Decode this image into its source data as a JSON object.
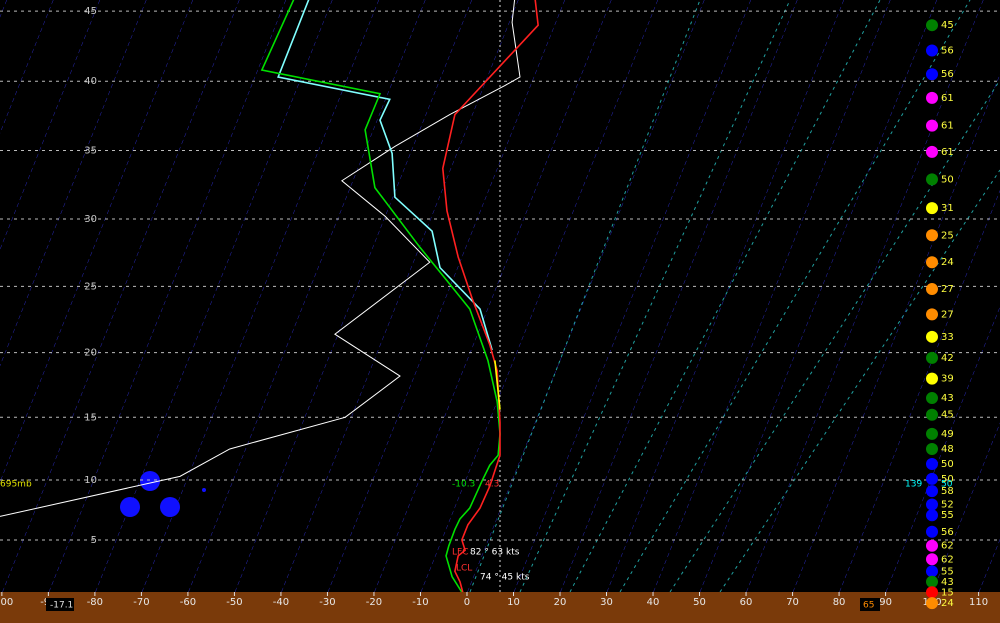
{
  "chart_data": {
    "type": "skewt",
    "xlim": [
      -100.4,
      114.6
    ],
    "ylim": [
      0,
      46
    ],
    "xticks": [
      -100,
      -90,
      -80,
      -70,
      -60,
      -50,
      -40,
      -30,
      -20,
      -10,
      0,
      10,
      20,
      30,
      40,
      50,
      60,
      70,
      80,
      90,
      100,
      110
    ],
    "yticks": [
      5,
      10,
      15,
      20,
      25,
      30,
      35,
      40,
      45
    ],
    "grid": true,
    "series": [
      {
        "color": "#ffffff",
        "x": [
          10.3,
          9.7,
          11.4,
          8.2,
          -3.7,
          -15.5,
          -26.9,
          -17.6,
          -8.0,
          -28.4,
          -14.4,
          -26.2,
          -51.0,
          -61.7,
          -100.4
        ],
        "values": [
          46,
          44.2,
          40.3,
          39.7,
          37.6,
          35.3,
          32.8,
          30.2,
          26.8,
          21.4,
          18.2,
          15,
          12.5,
          10.3,
          7.0
        ]
      },
      {
        "color": "#80ffff",
        "x": [
          -33.8,
          -40.6,
          -16.6,
          -18.7,
          -16.1,
          -15.5,
          -7.5,
          -5.8,
          2.8,
          5.4
        ],
        "values": [
          46,
          40.3,
          38.7,
          37.2,
          34.8,
          31.6,
          29.1,
          26.4,
          23.3,
          20.2
        ]
      },
      {
        "color": "#00e000",
        "x": [
          -37.0,
          -44.1,
          -18.7,
          -21.9,
          -19.8,
          -10.1,
          -4.7,
          0.6,
          4.5,
          6.5,
          7.1,
          6.7,
          4.9,
          3.2,
          0.6,
          -1.5,
          -2.6,
          -3.9,
          -4.5,
          -3.2,
          -1.1
        ],
        "values": [
          46,
          40.8,
          39.1,
          36.5,
          32.3,
          27.9,
          25.6,
          23.3,
          19.4,
          16.2,
          13.7,
          12.0,
          11.2,
          9.9,
          7.7,
          6.8,
          5.9,
          4.5,
          3.6,
          1.7,
          0.1
        ]
      },
      {
        "color": "#ff2020",
        "x": [
          14.6,
          15.3,
          -2.6,
          -5.2,
          -4.3,
          -1.9,
          1.1,
          4.9,
          6.5,
          7.1,
          7.1,
          4.9,
          2.8,
          0.2,
          -1.1,
          -0.4,
          -1.9,
          -2.6,
          -1.5,
          -0.9
        ],
        "values": [
          46,
          44.0,
          37.6,
          33.7,
          30.6,
          27.2,
          24.1,
          20.6,
          18.6,
          14.6,
          12.0,
          9.5,
          7.7,
          6.3,
          5,
          4.1,
          3.6,
          2.2,
          1.2,
          0.1
        ]
      },
      {
        "color": "#ffff00",
        "x": [
          6.0,
          7.1
        ],
        "values": [
          19.4,
          15.6
        ]
      }
    ],
    "wind": {
      "heights": [
        44.0,
        42.2,
        40.5,
        38.8,
        36.8,
        34.9,
        32.9,
        30.8,
        28.8,
        26.8,
        24.8,
        22.9,
        21.2,
        19.6,
        18.0,
        16.5,
        15.2,
        13.7,
        12.5,
        11.3,
        10.1,
        9.1,
        8.0,
        7.1,
        5.7,
        4.5,
        3.3,
        2.2,
        1.2,
        0.1,
        -1.1
      ],
      "speeds": [
        45,
        56,
        56,
        61,
        61,
        61,
        50,
        31,
        25,
        24,
        27,
        27,
        33,
        42,
        39,
        43,
        45,
        49,
        48,
        50,
        50,
        58,
        52,
        55,
        56,
        62,
        62,
        55,
        43,
        15,
        24
      ],
      "colors": [
        "#008000",
        "#0000ff",
        "#0000ff",
        "#ff00ff",
        "#ff00ff",
        "#ff00ff",
        "#008000",
        "#ffff00",
        "#ff8c00",
        "#ff8c00",
        "#ff8c00",
        "#ff8c00",
        "#ffff00",
        "#008000",
        "#ffff00",
        "#008000",
        "#008000",
        "#008000",
        "#008000",
        "#0000ff",
        "#0000ff",
        "#0000ff",
        "#0000ff",
        "#0000ff",
        "#0000ff",
        "#ff00ff",
        "#ff00ff",
        "#0000ff",
        "#008000",
        "#ff0000",
        "#ff8c00"
      ]
    },
    "annotations": [
      "695mb",
      "-10.3",
      "4.3",
      "139",
      "50",
      "LFC",
      "LCL",
      "82 ° 63 kts",
      "74 ° 45 kts",
      "-17.1",
      "65"
    ]
  }
}
